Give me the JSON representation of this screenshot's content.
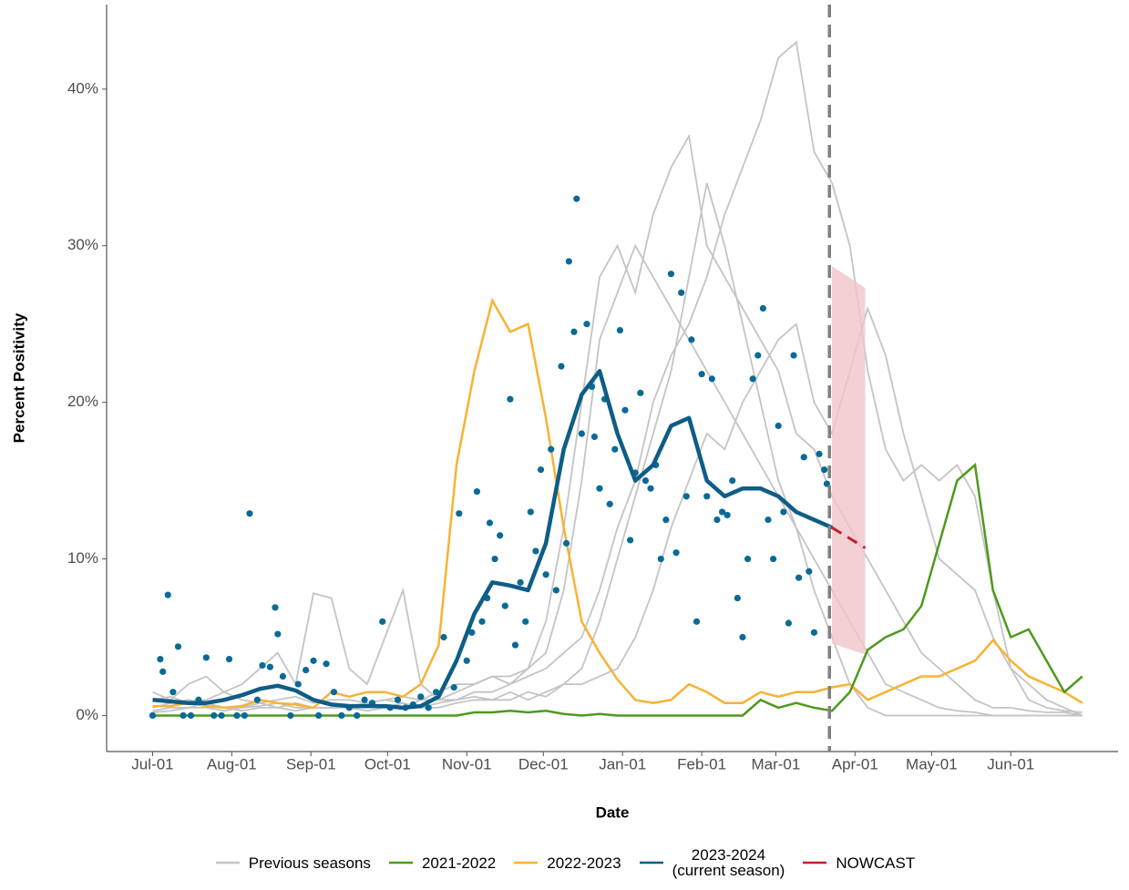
{
  "chart_data": {
    "type": "line",
    "xlabel": "Date",
    "ylabel": "Percent Positivity",
    "xlim": [
      -18,
      378
    ],
    "ylim": [
      -2.3,
      45.4
    ],
    "xticks": [
      {
        "value": 0,
        "label": "Jul-01"
      },
      {
        "value": 31,
        "label": "Aug-01"
      },
      {
        "value": 62,
        "label": "Sep-01"
      },
      {
        "value": 92,
        "label": "Oct-01"
      },
      {
        "value": 123,
        "label": "Nov-01"
      },
      {
        "value": 153,
        "label": "Dec-01"
      },
      {
        "value": 184,
        "label": "Jan-01"
      },
      {
        "value": 215,
        "label": "Feb-01"
      },
      {
        "value": 244,
        "label": "Mar-01"
      },
      {
        "value": 275,
        "label": "Apr-01"
      },
      {
        "value": 305,
        "label": "May-01"
      },
      {
        "value": 336,
        "label": "Jun-01"
      }
    ],
    "yticks": [
      {
        "value": 0,
        "label": "0%"
      },
      {
        "value": 10,
        "label": "10%"
      },
      {
        "value": 20,
        "label": "20%"
      },
      {
        "value": 30,
        "label": "30%"
      },
      {
        "value": 40,
        "label": "40%"
      }
    ],
    "vline": 265,
    "x": [
      0,
      7,
      14,
      21,
      28,
      35,
      42,
      49,
      56,
      63,
      70,
      77,
      84,
      91,
      98,
      105,
      112,
      119,
      126,
      133,
      140,
      147,
      154,
      161,
      168,
      175,
      182,
      189,
      196,
      203,
      210,
      217,
      224,
      231,
      238,
      245,
      252,
      259,
      266,
      273,
      280,
      287,
      294,
      301,
      308,
      315,
      322,
      329,
      336,
      343,
      350,
      357,
      364
    ],
    "previous_seasons": {
      "name": "Previous seasons",
      "color": "#c4c4c4",
      "lines": [
        [
          0.5,
          0.8,
          1.0,
          0.8,
          0.5,
          0.5,
          0.6,
          0.8,
          0.5,
          0.5,
          0.5,
          0.6,
          0.8,
          1.0,
          0.8,
          0.5,
          0.8,
          1.0,
          1.5,
          1.5,
          2.0,
          2.5,
          3.0,
          4,
          5,
          8,
          12,
          15,
          20,
          23,
          25,
          28,
          32,
          35,
          38,
          42,
          43,
          36,
          34,
          30,
          22,
          17,
          15,
          16,
          15,
          16,
          14,
          8,
          3,
          1,
          0.5,
          0.3,
          0.2
        ],
        [
          1.0,
          1.2,
          0.8,
          1.0,
          1.5,
          1.0,
          0.8,
          1.0,
          1.2,
          0.8,
          1.0,
          1.0,
          0.8,
          1.0,
          1.2,
          1.0,
          1.5,
          2.0,
          2.0,
          2.5,
          2.5,
          3,
          6,
          12,
          20,
          28,
          30,
          27,
          32,
          35,
          37,
          30,
          28,
          26,
          24,
          22,
          18,
          17,
          14,
          12,
          10,
          8,
          6,
          4,
          3,
          2,
          1,
          0.5,
          0.5,
          0.3,
          0.2,
          0.2,
          0
        ],
        [
          0.3,
          0.5,
          0.5,
          0.8,
          0.5,
          0.3,
          0.5,
          0.5,
          0.8,
          0.5,
          0.5,
          0.5,
          0.8,
          0.5,
          0.5,
          1.0,
          1.0,
          1.5,
          2.0,
          2.5,
          2.0,
          3.0,
          4,
          8,
          15,
          24,
          27,
          30,
          28,
          26,
          24,
          22,
          20,
          18,
          16,
          14,
          12,
          10,
          8,
          6,
          4,
          2,
          1.5,
          1,
          0.5,
          0.3,
          0.2,
          0,
          0,
          0,
          0,
          0,
          0
        ],
        [
          0.2,
          0.3,
          0.5,
          0.5,
          0.3,
          0.5,
          0.8,
          0.5,
          0.3,
          0.5,
          0.5,
          0.5,
          0.3,
          0.5,
          0.8,
          0.5,
          0.5,
          0.8,
          1.0,
          1.0,
          1.5,
          1.0,
          1.5,
          2.0,
          2.0,
          2.5,
          3,
          5,
          8,
          12,
          15,
          18,
          17,
          20,
          22,
          24,
          25,
          20,
          18,
          22,
          26,
          23,
          18,
          14,
          10,
          9,
          8,
          5,
          3,
          2,
          1,
          0.5,
          0
        ],
        [
          1.5,
          1.0,
          2.0,
          2.5,
          1.5,
          2.0,
          3.0,
          4.0,
          2.0,
          7.8,
          7.5,
          3.0,
          2.0,
          5.0,
          8.0,
          2.0,
          1.0,
          1.0,
          1.2,
          1.0,
          1.0,
          1.5,
          1.2,
          2.0,
          3,
          6,
          10,
          14,
          18,
          22,
          28,
          34,
          30,
          25,
          20,
          15,
          12,
          8,
          5,
          2,
          0.5,
          0,
          0,
          0,
          0,
          0,
          0,
          0,
          0,
          0,
          0,
          0,
          0
        ]
      ]
    },
    "series": [
      {
        "name": "2021-2022",
        "color": "#4d9a1e",
        "values": [
          0,
          0,
          0,
          0,
          0,
          0,
          0,
          0,
          0,
          0,
          0,
          0,
          0,
          0,
          0,
          0,
          0,
          0,
          0.2,
          0.2,
          0.3,
          0.2,
          0.3,
          0.1,
          0,
          0.1,
          0,
          0,
          0,
          0,
          0,
          0,
          0,
          0,
          1.0,
          0.5,
          0.8,
          0.5,
          0.3,
          1.5,
          4.2,
          5.0,
          5.5,
          7.0,
          11.0,
          15.0,
          16.0,
          8.0,
          5.0,
          5.5,
          3.5,
          1.5,
          2.5
        ]
      },
      {
        "name": "2022-2023",
        "color": "#f9b233",
        "values": [
          0.6,
          0.6,
          0.8,
          0.6,
          0.5,
          0.6,
          1.0,
          0.8,
          0.7,
          0.5,
          1.5,
          1.2,
          1.5,
          1.5,
          1.2,
          2.0,
          4.5,
          16,
          22,
          26.5,
          24.5,
          25,
          19,
          12,
          6,
          4,
          2.3,
          1.0,
          0.8,
          1.0,
          2.0,
          1.5,
          0.8,
          0.8,
          1.5,
          1.2,
          1.5,
          1.5,
          1.8,
          2.0,
          1.0,
          1.5,
          2.0,
          2.5,
          2.5,
          3.0,
          3.5,
          4.8,
          3.5,
          2.5,
          2.0,
          1.5,
          0.8
        ]
      },
      {
        "name": "2023-2024\n(current season)",
        "color": "#0e5d86",
        "values": [
          1.0,
          0.9,
          0.8,
          0.8,
          1.0,
          1.3,
          1.7,
          1.9,
          1.6,
          1.0,
          0.7,
          0.6,
          0.6,
          0.6,
          0.5,
          0.6,
          1.2,
          3.5,
          6.5,
          8.5,
          8.3,
          8.0,
          11.0,
          17.0,
          20.5,
          22.0,
          18.0,
          15.0,
          16.0,
          18.5,
          19.0,
          15.0,
          14.0,
          14.5,
          14.5,
          14.0,
          13.0,
          12.5,
          12.0,
          null,
          null,
          null,
          null,
          null,
          null,
          null,
          null,
          null,
          null,
          null,
          null,
          null,
          null
        ],
        "points": {
          "color": "#0a6a96",
          "x": [
            0,
            3,
            4,
            6,
            8,
            10,
            12,
            15,
            18,
            21,
            24,
            27,
            30,
            33,
            36,
            38,
            41,
            43,
            46,
            48,
            49,
            51,
            54,
            57,
            60,
            63,
            65,
            68,
            71,
            74,
            77,
            80,
            83,
            86,
            90,
            93,
            96,
            99,
            102,
            105,
            108,
            111,
            114,
            118,
            120,
            123,
            125,
            127,
            129,
            131,
            132,
            134,
            136,
            138,
            140,
            142,
            144,
            146,
            148,
            150,
            152,
            154,
            156,
            158,
            160,
            162,
            163,
            165,
            166,
            168,
            170,
            172,
            173,
            175,
            177,
            179,
            181,
            183,
            185,
            187,
            189,
            191,
            193,
            195,
            197,
            199,
            201,
            203,
            205,
            207,
            209,
            211,
            213,
            215,
            217,
            219,
            221,
            223,
            225,
            227,
            229,
            231,
            233,
            235,
            237,
            239,
            241,
            243,
            245,
            247,
            249,
            251,
            253,
            255,
            257,
            259,
            261,
            263,
            264
          ],
          "values": [
            0,
            3.6,
            2.8,
            7.7,
            1.5,
            4.4,
            0,
            0,
            1.0,
            3.7,
            0,
            0,
            3.6,
            0,
            0,
            12.9,
            1.0,
            3.2,
            3.1,
            6.9,
            5.2,
            2.5,
            0,
            2.0,
            2.9,
            3.5,
            0,
            3.3,
            1.5,
            0,
            0.5,
            0,
            1.0,
            0.8,
            6.0,
            0.5,
            1.0,
            0.5,
            0.7,
            1.2,
            0.5,
            1.5,
            5.0,
            1.8,
            12.9,
            3.5,
            5.3,
            14.3,
            6.0,
            7.5,
            12.3,
            10.0,
            11.5,
            7.0,
            20.2,
            4.5,
            8.5,
            6.0,
            13.0,
            10.5,
            15.7,
            9.0,
            17.0,
            8.0,
            22.3,
            11.0,
            29.0,
            24.5,
            33.0,
            18.0,
            25.0,
            21.0,
            17.8,
            14.5,
            20.2,
            13.5,
            17.0,
            24.6,
            19.5,
            11.2,
            15.5,
            20.6,
            15.0,
            14.5,
            16.0,
            10.0,
            12.5,
            28.2,
            10.4,
            27.0,
            14.0,
            24.0,
            6.0,
            21.8,
            14.0,
            21.5,
            12.5,
            13.0,
            12.8,
            15.0,
            7.5,
            5.0,
            10.0,
            21.5,
            23.0,
            26.0,
            12.5,
            10.0,
            18.5,
            13.0,
            5.9,
            23.0,
            8.8,
            16.5,
            9.2,
            5.3,
            16.7,
            15.7,
            14.8
          ]
        }
      },
      {
        "name": "NOWCAST",
        "color": "#c0202f",
        "band_color": "#f0c4c8",
        "x": [
          266,
          279
        ],
        "values": [
          12.0,
          10.7
        ],
        "lower": [
          4.6,
          3.9
        ],
        "upper": [
          28.7,
          27.3
        ]
      }
    ]
  }
}
